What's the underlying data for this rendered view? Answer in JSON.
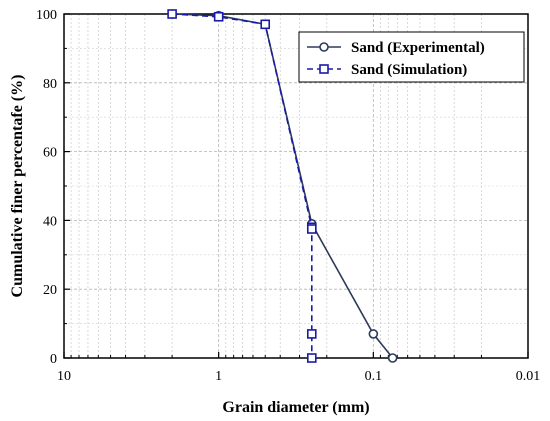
{
  "chart_data": {
    "type": "line",
    "xlabel": "Grain diameter (mm)",
    "ylabel": "Cumulative finer percentafe (%)",
    "x_scale": "log",
    "x_reversed": true,
    "xlim": [
      10,
      0.01
    ],
    "ylim": [
      0,
      100
    ],
    "x_ticks": [
      10,
      1,
      0.1,
      0.01
    ],
    "x_tick_labels": [
      "10",
      "1",
      "0.1",
      "0.01"
    ],
    "y_ticks": [
      0,
      20,
      40,
      60,
      80,
      100
    ],
    "y_tick_labels": [
      "0",
      "20",
      "40",
      "60",
      "80",
      "100"
    ],
    "grid": true,
    "legend_position": "top-right",
    "series": [
      {
        "name": "Sand (Experimental)",
        "marker": "circle",
        "line_style": "solid",
        "color": "#2d3a5a",
        "x": [
          2,
          1,
          0.5,
          0.25,
          0.1,
          0.075
        ],
        "y": [
          100,
          99.5,
          97,
          39,
          7,
          0
        ]
      },
      {
        "name": "Sand (Simulation)",
        "marker": "square",
        "line_style": "dashed",
        "color": "#1a1aa8",
        "x": [
          2,
          1,
          0.5,
          0.25,
          0.25,
          0.25,
          0.25
        ],
        "y": [
          100,
          99.2,
          97,
          38,
          37.5,
          7,
          0
        ]
      }
    ]
  }
}
